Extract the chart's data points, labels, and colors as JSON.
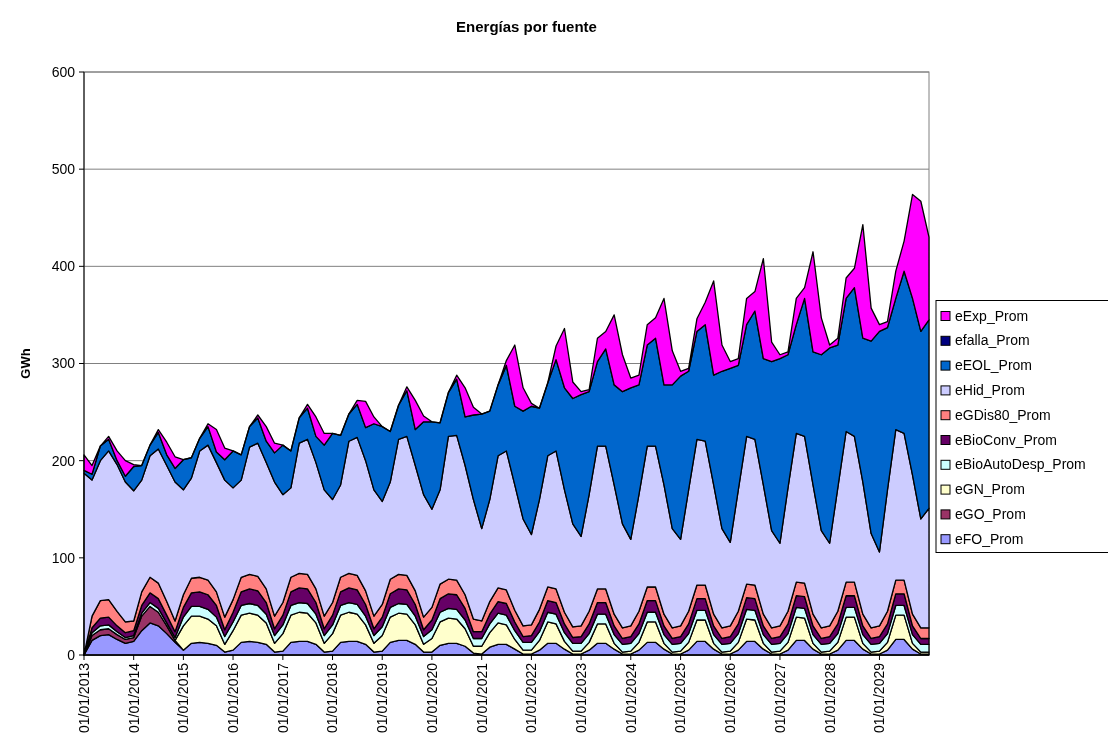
{
  "chart_data": {
    "type": "area",
    "stacked": true,
    "title": "Energías por fuente",
    "ylabel": "GWh",
    "x": [
      "2013-01-01",
      "2013-03-01",
      "2013-05-01",
      "2013-07-01",
      "2013-09-01",
      "2013-11-01",
      "2014-01-01",
      "2014-03-01",
      "2014-05-01",
      "2014-07-01",
      "2014-09-01",
      "2014-11-01",
      "2015-01-01",
      "2015-03-01",
      "2015-05-01",
      "2015-07-01",
      "2015-09-01",
      "2015-11-01",
      "2016-01-01",
      "2016-03-01",
      "2016-05-01",
      "2016-07-01",
      "2016-09-01",
      "2016-11-01",
      "2017-01-01",
      "2017-03-01",
      "2017-05-01",
      "2017-07-01",
      "2017-09-01",
      "2017-11-01",
      "2018-01-01",
      "2018-03-01",
      "2018-05-01",
      "2018-07-01",
      "2018-09-01",
      "2018-11-01",
      "2019-01-01",
      "2019-03-01",
      "2019-05-01",
      "2019-07-01",
      "2019-09-01",
      "2019-11-01",
      "2020-01-01",
      "2020-03-01",
      "2020-05-01",
      "2020-07-01",
      "2020-09-01",
      "2020-11-01",
      "2021-01-01",
      "2021-03-01",
      "2021-05-01",
      "2021-07-01",
      "2021-09-01",
      "2021-11-01",
      "2022-01-01",
      "2022-03-01",
      "2022-05-01",
      "2022-07-01",
      "2022-09-01",
      "2022-11-01",
      "2023-01-01",
      "2023-03-01",
      "2023-05-01",
      "2023-07-01",
      "2023-09-01",
      "2023-11-01",
      "2024-01-01",
      "2024-03-01",
      "2024-05-01",
      "2024-07-01",
      "2024-09-01",
      "2024-11-01",
      "2025-01-01",
      "2025-03-01",
      "2025-05-01",
      "2025-07-01",
      "2025-09-01",
      "2025-11-01",
      "2026-01-01",
      "2026-03-01",
      "2026-05-01",
      "2026-07-01",
      "2026-09-01",
      "2026-11-01",
      "2027-01-01",
      "2027-03-01",
      "2027-05-01",
      "2027-07-01",
      "2027-09-01",
      "2027-11-01",
      "2028-01-01",
      "2028-03-01",
      "2028-05-01",
      "2028-07-01",
      "2028-09-01",
      "2028-11-01",
      "2029-01-01",
      "2029-03-01",
      "2029-05-01",
      "2029-07-01",
      "2029-09-01",
      "2029-11-01",
      "2029-12-31"
    ],
    "xlim": [
      "2013-01-01",
      "2029-12-31"
    ],
    "xticks": [
      {
        "value": "2013-01-01",
        "label": "01/01/2013"
      },
      {
        "value": "2014-01-01",
        "label": "01/01/2014"
      },
      {
        "value": "2015-01-01",
        "label": "01/01/2015"
      },
      {
        "value": "2016-01-01",
        "label": "01/01/2016"
      },
      {
        "value": "2017-01-01",
        "label": "01/01/2017"
      },
      {
        "value": "2018-01-01",
        "label": "01/01/2018"
      },
      {
        "value": "2019-01-01",
        "label": "01/01/2019"
      },
      {
        "value": "2020-01-01",
        "label": "01/01/2020"
      },
      {
        "value": "2021-01-01",
        "label": "01/01/2021"
      },
      {
        "value": "2022-01-01",
        "label": "01/01/2022"
      },
      {
        "value": "2023-01-01",
        "label": "01/01/2023"
      },
      {
        "value": "2024-01-01",
        "label": "01/01/2024"
      },
      {
        "value": "2025-01-01",
        "label": "01/01/2025"
      },
      {
        "value": "2026-01-01",
        "label": "01/01/2026"
      },
      {
        "value": "2027-01-01",
        "label": "01/01/2027"
      },
      {
        "value": "2028-01-01",
        "label": "01/01/2028"
      },
      {
        "value": "2029-01-01",
        "label": "01/01/2029"
      }
    ],
    "ylim": [
      0,
      600
    ],
    "yticks": [
      0,
      100,
      200,
      300,
      400,
      500,
      600
    ],
    "grid": "y",
    "legend": "right",
    "series": [
      {
        "name": "eFO_Prom",
        "color": "#9999ff",
        "values": [
          0,
          15,
          20,
          21,
          16,
          12,
          14,
          25,
          33,
          30,
          22,
          13,
          5,
          12,
          13,
          12,
          10,
          3,
          5,
          13,
          14,
          13,
          11,
          3,
          4,
          13,
          14,
          14,
          11,
          3,
          4,
          13,
          14,
          14,
          11,
          3,
          4,
          13,
          15,
          15,
          11,
          3,
          3,
          10,
          12,
          12,
          9,
          2,
          1,
          8,
          11,
          11,
          6,
          1,
          1,
          5,
          12,
          12,
          6,
          1,
          1,
          5,
          12,
          12,
          6,
          1,
          1,
          5,
          13,
          13,
          6,
          1,
          1,
          5,
          14,
          14,
          6,
          1,
          1,
          5,
          14,
          14,
          6,
          1,
          1,
          5,
          15,
          15,
          6,
          1,
          1,
          5,
          15,
          15,
          6,
          1,
          1,
          5,
          16,
          16,
          6,
          1,
          1
        ]
      },
      {
        "name": "eGO_Prom",
        "color": "#993366",
        "values": [
          0,
          5,
          6,
          6,
          5,
          4,
          4,
          15,
          17,
          14,
          8,
          2,
          0,
          null,
          null,
          null,
          null,
          null,
          null,
          null,
          null,
          null,
          null,
          null,
          null,
          null,
          null,
          null,
          null,
          null,
          null,
          null,
          null,
          null,
          null,
          null,
          null,
          null,
          null,
          null,
          null,
          null,
          null,
          null,
          null,
          null,
          null,
          null,
          null,
          null,
          null,
          null,
          null,
          null,
          null,
          null,
          null,
          null,
          null,
          null,
          null,
          null,
          null,
          null,
          null,
          null,
          null,
          null,
          null,
          null,
          null,
          null,
          null,
          null,
          null,
          null,
          null,
          null,
          null,
          null,
          null,
          null,
          null,
          null,
          null,
          null,
          null,
          null,
          null,
          null,
          null,
          null,
          null,
          null,
          null,
          null,
          null,
          null,
          null,
          null,
          null,
          null,
          null
        ]
      },
      {
        "name": "eGN_Prom",
        "color": "#ffffcc",
        "values": [
          null,
          null,
          null,
          null,
          null,
          null,
          null,
          null,
          null,
          null,
          null,
          0,
          25,
          28,
          27,
          25,
          20,
          8,
          20,
          28,
          29,
          28,
          22,
          9,
          18,
          28,
          30,
          29,
          22,
          9,
          18,
          28,
          30,
          28,
          20,
          9,
          16,
          26,
          28,
          27,
          20,
          8,
          14,
          24,
          26,
          25,
          18,
          7,
          8,
          15,
          22,
          20,
          10,
          4,
          4,
          10,
          22,
          20,
          8,
          3,
          3,
          8,
          20,
          20,
          6,
          2,
          3,
          8,
          21,
          21,
          6,
          2,
          3,
          8,
          22,
          22,
          6,
          2,
          3,
          8,
          23,
          22,
          6,
          2,
          3,
          8,
          24,
          23,
          6,
          2,
          3,
          8,
          24,
          24,
          6,
          2,
          3,
          8,
          25,
          25,
          6,
          2,
          2
        ]
      },
      {
        "name": "eBioAutoDesp_Prom",
        "color": "#ccffff",
        "values": [
          0,
          3,
          4,
          4,
          3,
          2,
          2,
          3,
          4,
          4,
          3,
          3,
          9,
          10,
          10,
          10,
          9,
          8,
          9,
          10,
          10,
          10,
          9,
          8,
          9,
          10,
          10,
          10,
          9,
          8,
          9,
          10,
          10,
          10,
          9,
          8,
          9,
          10,
          10,
          10,
          9,
          8,
          9,
          10,
          10,
          10,
          9,
          8,
          8,
          9,
          10,
          10,
          9,
          8,
          8,
          9,
          10,
          10,
          9,
          8,
          8,
          9,
          10,
          10,
          9,
          8,
          8,
          9,
          10,
          10,
          9,
          8,
          8,
          9,
          10,
          10,
          9,
          8,
          8,
          9,
          10,
          10,
          9,
          8,
          8,
          9,
          10,
          10,
          9,
          8,
          8,
          9,
          10,
          10,
          9,
          8,
          8,
          9,
          10,
          10,
          9,
          8,
          8
        ]
      },
      {
        "name": "eBioConv_Prom",
        "color": "#660066",
        "values": [
          0,
          5,
          8,
          8,
          6,
          5,
          5,
          8,
          10,
          10,
          8,
          6,
          10,
          14,
          15,
          15,
          12,
          7,
          10,
          14,
          15,
          15,
          12,
          7,
          10,
          14,
          15,
          15,
          12,
          7,
          10,
          14,
          15,
          15,
          12,
          7,
          10,
          14,
          15,
          15,
          12,
          7,
          10,
          14,
          15,
          15,
          12,
          7,
          7,
          10,
          12,
          12,
          9,
          6,
          7,
          10,
          12,
          12,
          9,
          6,
          7,
          10,
          12,
          12,
          9,
          6,
          7,
          10,
          12,
          12,
          9,
          6,
          7,
          10,
          12,
          12,
          9,
          6,
          7,
          10,
          12,
          12,
          9,
          6,
          7,
          10,
          12,
          12,
          9,
          6,
          7,
          10,
          12,
          12,
          9,
          6,
          7,
          10,
          12,
          12,
          9,
          6,
          6
        ]
      },
      {
        "name": "eGDis80_Prom",
        "color": "#ff8080",
        "values": [
          0,
          12,
          18,
          18,
          15,
          11,
          10,
          14,
          16,
          16,
          14,
          11,
          13,
          15,
          15,
          15,
          14,
          13,
          13,
          15,
          15,
          15,
          14,
          13,
          13,
          15,
          15,
          15,
          14,
          13,
          13,
          15,
          15,
          15,
          14,
          13,
          13,
          15,
          15,
          15,
          14,
          13,
          13,
          15,
          15,
          15,
          14,
          13,
          11,
          13,
          14,
          14,
          12,
          11,
          11,
          13,
          14,
          14,
          12,
          11,
          11,
          13,
          14,
          14,
          12,
          11,
          11,
          13,
          14,
          14,
          12,
          11,
          11,
          13,
          14,
          14,
          12,
          11,
          11,
          13,
          14,
          14,
          12,
          11,
          11,
          13,
          14,
          14,
          12,
          11,
          11,
          13,
          14,
          14,
          12,
          11,
          11,
          13,
          14,
          14,
          12,
          11,
          11
        ]
      },
      {
        "name": "eHid_Prom",
        "color": "#ccccff",
        "values": [
          187,
          140,
          144,
          153,
          151,
          144,
          134,
          115,
          125,
          138,
          140,
          143,
          108,
          103,
          130,
          139,
          133,
          141,
          115,
          100,
          131,
          137,
          130,
          138,
          111,
          92,
          134,
          139,
          130,
          130,
          106,
          95,
          136,
          142,
          134,
          130,
          106,
          100,
          139,
          143,
          129,
          126,
          101,
          97,
          147,
          149,
          133,
          123,
          95,
          105,
          136,
          143,
          129,
          110,
          93,
          113,
          135,
          142,
          126,
          106,
          92,
          120,
          147,
          147,
          133,
          107,
          89,
          120,
          145,
          145,
          133,
          102,
          89,
          125,
          150,
          148,
          133,
          102,
          86,
          125,
          152,
          150,
          133,
          100,
          85,
          127,
          153,
          151,
          133,
          100,
          85,
          127,
          155,
          150,
          136,
          97,
          76,
          125,
          155,
          151,
          143,
          112,
          123
        ]
      },
      {
        "name": "eEOL_Prom",
        "color": "#0066cc",
        "values": [
          3,
          6,
          15,
          12,
          4,
          6,
          25,
          15,
          11,
          17,
          11,
          14,
          31,
          21,
          13,
          19,
          11,
          21,
          38,
          26,
          21,
          26,
          22,
          30,
          51,
          38,
          26,
          32,
          27,
          46,
          68,
          51,
          28,
          34,
          34,
          68,
          77,
          52,
          35,
          47,
          37,
          75,
          90,
          69,
          45,
          58,
          50,
          87,
          118,
          91,
          73,
          88,
          81,
          111,
          132,
          94,
          75,
          94,
          105,
          129,
          146,
          106,
          87,
          100,
          103,
          136,
          156,
          113,
          104,
          111,
          103,
          148,
          168,
          122,
          111,
          120,
          113,
          162,
          179,
          128,
          115,
          132,
          130,
          174,
          190,
          137,
          112,
          142,
          137,
          181,
          201,
          147,
          137,
          153,
          148,
          198,
          227,
          167,
          135,
          167,
          182,
          193,
          194
        ]
      },
      {
        "name": "efalla_Prom",
        "color": "#000080",
        "values": [
          null,
          null,
          null,
          null,
          null,
          null,
          null,
          null,
          null,
          null,
          null,
          null,
          null,
          null,
          null,
          null,
          null,
          null,
          null,
          null,
          null,
          null,
          null,
          null,
          null,
          null,
          null,
          null,
          null,
          null,
          null,
          null,
          null,
          null,
          null,
          null,
          null,
          null,
          null,
          null,
          null,
          null,
          null,
          null,
          null,
          null,
          null,
          null,
          null,
          null,
          null,
          null,
          null,
          null,
          null,
          null,
          null,
          null,
          null,
          null,
          null,
          null,
          null,
          null,
          null,
          null,
          null,
          null,
          null,
          null,
          null,
          null,
          null,
          null,
          null,
          null,
          null,
          null,
          null,
          null,
          null,
          null,
          null,
          null,
          null,
          null,
          null,
          null,
          null,
          null,
          null,
          null,
          null,
          null,
          null,
          null,
          null,
          null,
          null,
          null,
          null,
          null,
          null
        ]
      },
      {
        "name": "eExp_Prom",
        "color": "#ff00ff",
        "values": [
          16,
          9,
          0,
          3,
          10,
          16,
          2,
          0,
          0,
          3,
          13,
          12,
          0,
          0,
          0,
          3,
          23,
          12,
          0,
          0,
          0,
          3,
          15,
          10,
          0,
          0,
          0,
          4,
          20,
          12,
          0,
          0,
          0,
          4,
          27,
          7,
          0,
          0,
          0,
          4,
          30,
          6,
          0,
          0,
          0,
          4,
          30,
          8,
          0,
          0,
          0,
          5,
          63,
          24,
          3,
          0,
          0,
          14,
          61,
          17,
          3,
          2,
          24,
          18,
          72,
          38,
          10,
          10,
          21,
          21,
          89,
          35,
          5,
          3,
          13,
          23,
          97,
          27,
          7,
          7,
          27,
          20,
          103,
          20,
          4,
          3,
          27,
          11,
          103,
          38,
          3,
          7,
          21,
          20,
          117,
          34,
          7,
          6,
          28,
          31,
          107,
          134,
          85
        ]
      }
    ]
  }
}
